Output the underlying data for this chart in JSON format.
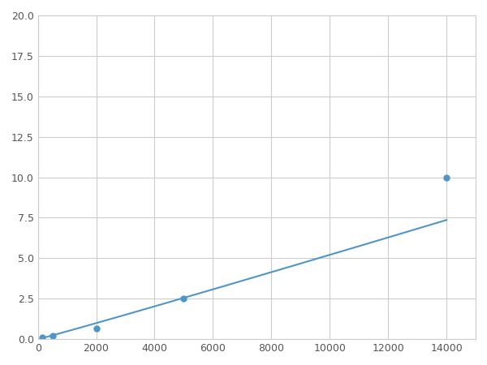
{
  "x": [
    156,
    500,
    2000,
    5000,
    14000
  ],
  "y": [
    0.1,
    0.2,
    0.65,
    2.5,
    10.0
  ],
  "line_color": "#4f96c8",
  "marker_color": "#4f96c8",
  "marker_size": 5,
  "xlim": [
    0,
    15000
  ],
  "ylim": [
    0,
    20.0
  ],
  "xticks": [
    0,
    2000,
    4000,
    6000,
    8000,
    10000,
    12000,
    14000
  ],
  "yticks": [
    0.0,
    2.5,
    5.0,
    7.5,
    10.0,
    12.5,
    15.0,
    17.5,
    20.0
  ],
  "grid_color": "#cccccc",
  "background_color": "#ffffff",
  "line_width": 1.5
}
